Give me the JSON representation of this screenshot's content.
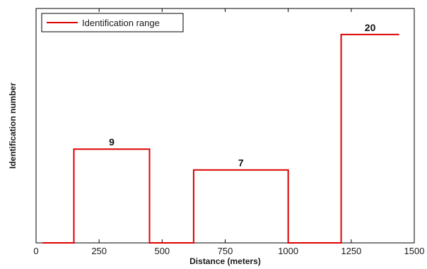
{
  "chart_data": {
    "type": "line",
    "xlabel": "Distance (meters)",
    "ylabel": "Identification number",
    "xlim": [
      0,
      1500
    ],
    "ylim": [
      0,
      22.5
    ],
    "x_ticks": [
      "0",
      "250",
      "500",
      "750",
      "1000",
      "1250",
      "1500"
    ],
    "y_ticks_visible": false,
    "grid": false,
    "legend_position": "top-left",
    "series": [
      {
        "name": "Identification range",
        "color": "#dd0000",
        "steps": [
          {
            "x_start": 25,
            "x_end": 150,
            "value": 0
          },
          {
            "x_start": 150,
            "x_end": 450,
            "value": 9
          },
          {
            "x_start": 450,
            "x_end": 625,
            "value": 0
          },
          {
            "x_start": 625,
            "x_end": 1000,
            "value": 7
          },
          {
            "x_start": 1000,
            "x_end": 1210,
            "value": 0
          },
          {
            "x_start": 1210,
            "x_end": 1440,
            "value": 20
          }
        ]
      }
    ],
    "data_labels": [
      {
        "x": 300,
        "value": 9,
        "text": "9"
      },
      {
        "x": 812.5,
        "value": 7,
        "text": "7"
      },
      {
        "x": 1325,
        "value": 20,
        "text": "20"
      }
    ]
  }
}
